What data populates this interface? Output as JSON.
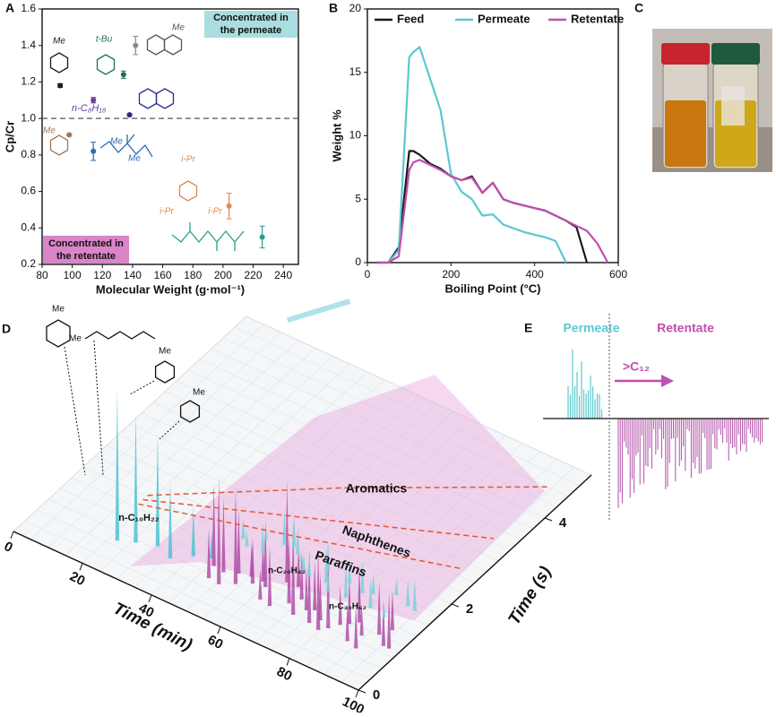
{
  "chart_data": [
    {
      "type": "scatter",
      "panel": "A",
      "x": [
        92,
        134,
        114,
        142,
        138,
        98,
        114,
        204,
        226
      ],
      "values": [
        1.18,
        1.24,
        1.1,
        1.4,
        1.02,
        0.91,
        0.82,
        0.52,
        0.35
      ],
      "errors": [
        0.01,
        0.02,
        0.015,
        0.05,
        0.005,
        0.005,
        0.05,
        0.07,
        0.06
      ],
      "colors": [
        "#1a1a1a",
        "#1f6e5e",
        "#6a3d9a",
        "#8a8a8a",
        "#2a2a8a",
        "#a0785a",
        "#2a6db0",
        "#e08850",
        "#2a9d8f"
      ],
      "xlim": [
        80,
        250
      ],
      "xticks": [
        80,
        100,
        120,
        140,
        160,
        180,
        200,
        220,
        240
      ],
      "ylim": [
        0.2,
        1.6
      ],
      "yticks": [
        0.2,
        0.4,
        0.6,
        0.8,
        {
          "value": 1,
          "label": "1.0"
        },
        1.2,
        1.4,
        1.6
      ],
      "reference_line": 1,
      "x_label": "Molecular Weight (g·mol⁻¹)",
      "y_label": "Cp/Cr",
      "annotations": [
        "Concentrated in the permeate",
        "Concentrated in the retentate",
        "n-C₈H₁₈"
      ],
      "structure_labels": [
        "Me",
        "t-Bu",
        "Me",
        "Me",
        "Me",
        "Me",
        "i-Pr",
        "i-Pr",
        "i-Pr"
      ]
    },
    {
      "type": "line",
      "panel": "B",
      "x": [
        25,
        50,
        75,
        100,
        110,
        125,
        150,
        175,
        200,
        225,
        250,
        275,
        300,
        325,
        350,
        375,
        400,
        425,
        450,
        475,
        500,
        525,
        550,
        575
      ],
      "series": [
        {
          "name": "Feed",
          "color": "#1a1a1a",
          "values": [
            0,
            0,
            1.2,
            8.8,
            8.8,
            8.5,
            7.8,
            7.4,
            6.8,
            6.5,
            6.8,
            5.5,
            6.3,
            5.0,
            4.7,
            4.5,
            4.3,
            4.1,
            3.7,
            3.3,
            2.8,
            0,
            null,
            null
          ]
        },
        {
          "name": "Permeate",
          "color": "#5bc8d0",
          "values": [
            0,
            0,
            1.0,
            16.2,
            16.6,
            17.0,
            14.5,
            12.0,
            7.0,
            5.6,
            5.0,
            3.7,
            3.8,
            3.0,
            2.7,
            2.4,
            2.2,
            2.0,
            1.7,
            0,
            null,
            null,
            null,
            null
          ]
        },
        {
          "name": "Retentate",
          "color": "#c04fb0",
          "values": [
            0,
            0,
            0.5,
            7.3,
            7.9,
            8.1,
            7.7,
            7.3,
            6.8,
            6.5,
            6.7,
            5.5,
            6.3,
            5.0,
            4.7,
            4.5,
            4.3,
            4.1,
            3.7,
            3.3,
            2.9,
            2.5,
            1.5,
            0
          ]
        }
      ],
      "xlim": [
        0,
        600
      ],
      "xticks": [
        0,
        200,
        400,
        600
      ],
      "ylim": [
        0,
        20
      ],
      "yticks": [
        0,
        5,
        10,
        15,
        20
      ],
      "x_label": "Boiling Point (°C)",
      "y_label": "Weight %",
      "legend": "top"
    },
    {
      "type": "surface",
      "panel": "D",
      "xlim": [
        0,
        100
      ],
      "xticks": [
        0,
        20,
        40,
        60,
        80,
        100
      ],
      "ylim": [
        0,
        5
      ],
      "yticks": [
        0,
        2,
        4
      ],
      "x_label": "Time (min)",
      "y_label": "Time (s)",
      "annotations": [
        "Aromatics",
        "Naphthenes",
        "Paraffins",
        "n-C₁₀H₂₂",
        "n-C₂₀H₄₂",
        "n-C₃₀H₆₂"
      ],
      "structure_labels": [
        "Me",
        "Me",
        "Me",
        "Me"
      ]
    },
    {
      "type": "mirror",
      "panel": "E",
      "annotations": [
        "Permeate",
        "Retentate",
        ">C₁₂"
      ]
    }
  ],
  "panel_letters": [
    "A",
    "B",
    "C",
    "D",
    "E"
  ]
}
